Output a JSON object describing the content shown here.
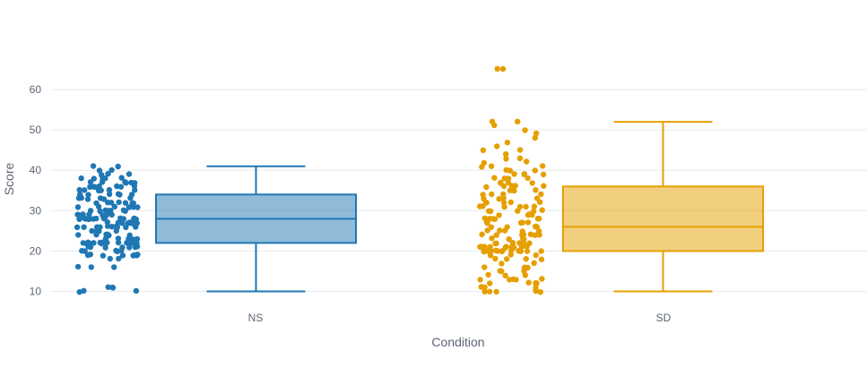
{
  "chart_data": {
    "type": "box",
    "xlabel": "Condition",
    "ylabel": "Score",
    "categories": [
      "NS",
      "SD"
    ],
    "yticks": [
      10,
      20,
      30,
      40,
      50,
      60
    ],
    "ylim": [
      7,
      68
    ],
    "grid": true,
    "legend": "none",
    "series": [
      {
        "category": "NS",
        "color": "#1f77b4",
        "box": {
          "min": 10,
          "q1": 22,
          "median": 28,
          "q3": 34,
          "max": 41
        },
        "points": [
          10,
          10,
          10,
          11,
          11,
          11,
          16,
          16,
          16,
          18,
          18,
          19,
          19,
          19,
          19,
          19,
          19,
          19,
          19,
          20,
          20,
          20,
          20,
          20,
          21,
          21,
          21,
          21,
          21,
          21,
          21,
          22,
          22,
          22,
          22,
          22,
          22,
          22,
          22,
          22,
          22,
          22,
          22,
          22,
          22,
          22,
          22,
          22,
          23,
          23,
          23,
          23,
          23,
          23,
          24,
          24,
          24,
          24,
          24,
          24,
          25,
          25,
          25,
          25,
          26,
          26,
          26,
          26,
          26,
          26,
          26,
          26,
          26,
          26,
          27,
          27,
          27,
          27,
          27,
          27,
          27,
          28,
          28,
          28,
          28,
          28,
          28,
          28,
          28,
          28,
          28,
          28,
          28,
          28,
          28,
          28,
          28,
          29,
          29,
          29,
          29,
          29,
          29,
          29,
          30,
          30,
          30,
          30,
          30,
          30,
          30,
          30,
          31,
          31,
          31,
          31,
          31,
          31,
          32,
          32,
          32,
          32,
          32,
          32,
          32,
          33,
          33,
          33,
          33,
          33,
          33,
          34,
          34,
          34,
          34,
          34,
          34,
          35,
          35,
          35,
          35,
          35,
          35,
          36,
          36,
          36,
          36,
          36,
          36,
          36,
          37,
          37,
          37,
          37,
          37,
          37,
          38,
          38,
          38,
          38,
          38,
          39,
          39,
          39,
          40,
          40,
          41,
          41
        ]
      },
      {
        "category": "SD",
        "color": "#e69f00",
        "box": {
          "min": 10,
          "q1": 20,
          "median": 26,
          "q3": 36,
          "max": 52
        },
        "points": [
          10,
          10,
          10,
          10,
          10,
          11,
          11,
          11,
          11,
          12,
          12,
          12,
          12,
          12,
          13,
          13,
          13,
          13,
          13,
          14,
          14,
          14,
          15,
          15,
          15,
          16,
          16,
          16,
          17,
          17,
          18,
          18,
          18,
          18,
          19,
          19,
          19,
          20,
          20,
          20,
          20,
          20,
          20,
          20,
          20,
          20,
          20,
          20,
          20,
          20,
          20,
          21,
          21,
          21,
          21,
          21,
          21,
          21,
          21,
          21,
          21,
          22,
          22,
          22,
          22,
          22,
          22,
          23,
          23,
          23,
          23,
          24,
          24,
          24,
          24,
          24,
          24,
          24,
          25,
          25,
          25,
          25,
          25,
          26,
          26,
          26,
          26,
          26,
          27,
          27,
          27,
          27,
          27,
          28,
          28,
          28,
          28,
          28,
          28,
          29,
          29,
          29,
          29,
          30,
          30,
          30,
          30,
          30,
          31,
          31,
          31,
          31,
          31,
          31,
          32,
          32,
          32,
          32,
          32,
          33,
          33,
          33,
          33,
          34,
          34,
          34,
          34,
          35,
          35,
          35,
          35,
          36,
          36,
          36,
          36,
          36,
          37,
          37,
          37,
          37,
          38,
          38,
          38,
          38,
          39,
          39,
          39,
          39,
          40,
          40,
          40,
          41,
          41,
          41,
          42,
          42,
          43,
          43,
          44,
          45,
          45,
          46,
          47,
          48,
          49,
          50,
          51,
          52,
          52,
          65,
          65
        ]
      }
    ]
  }
}
